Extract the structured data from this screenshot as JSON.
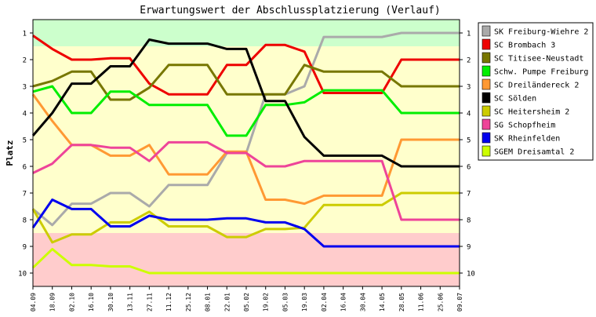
{
  "chart_data": {
    "type": "line",
    "title": "Erwartungswert der Abschlussplatzierung (Verlauf)",
    "xlabel": "",
    "ylabel": "Platz",
    "ylim": [
      0.5,
      10.5
    ],
    "y_ticks": [
      1,
      2,
      3,
      4,
      5,
      6,
      7,
      8,
      9,
      10
    ],
    "y_axis_inverted": true,
    "grid": false,
    "legend_position": "right",
    "zones": [
      {
        "from": 0.5,
        "to": 1.5,
        "color": "#ccffcc"
      },
      {
        "from": 1.5,
        "to": 8.5,
        "color": "#ffffcc"
      },
      {
        "from": 8.5,
        "to": 10.5,
        "color": "#ffcccc"
      }
    ],
    "categories": [
      "04.09",
      "18.09",
      "02.10",
      "16.10",
      "30.10",
      "13.11",
      "27.11",
      "11.12",
      "25.12",
      "08.01",
      "22.01",
      "05.02",
      "19.02",
      "05.03",
      "19.03",
      "02.04",
      "16.04",
      "30.04",
      "14.05",
      "28.05",
      "11.06",
      "25.06",
      "09.07"
    ],
    "series": [
      {
        "name": "SK Freiburg-Wiehre 2",
        "color": "#aaaaaa",
        "values": [
          7.6,
          8.2,
          7.4,
          7.4,
          7.0,
          7.0,
          7.5,
          6.7,
          6.7,
          6.7,
          5.5,
          5.5,
          3.3,
          3.3,
          3.0,
          1.15,
          1.15,
          1.15,
          1.15,
          1.0,
          1.0,
          1.0,
          1.0
        ]
      },
      {
        "name": "SC Brombach 3",
        "color": "#ee0000",
        "values": [
          1.1,
          1.6,
          2.0,
          2.0,
          1.95,
          1.95,
          2.9,
          3.3,
          3.3,
          3.3,
          2.2,
          2.2,
          1.45,
          1.45,
          1.7,
          3.25,
          3.25,
          3.25,
          3.25,
          2.0,
          2.0,
          2.0,
          2.0
        ]
      },
      {
        "name": "SC Titisee-Neustadt",
        "color": "#777700",
        "values": [
          3.0,
          2.8,
          2.45,
          2.45,
          3.5,
          3.5,
          3.05,
          2.2,
          2.2,
          2.2,
          3.3,
          3.3,
          3.3,
          3.3,
          2.2,
          2.45,
          2.45,
          2.45,
          2.45,
          3.0,
          3.0,
          3.0,
          3.0
        ]
      },
      {
        "name": "Schw. Pumpe Freiburg",
        "color": "#00ee00",
        "values": [
          3.2,
          3.0,
          4.0,
          4.0,
          3.2,
          3.2,
          3.7,
          3.7,
          3.7,
          3.7,
          4.85,
          4.85,
          3.7,
          3.7,
          3.6,
          3.15,
          3.15,
          3.15,
          3.15,
          4.0,
          4.0,
          4.0,
          4.0
        ]
      },
      {
        "name": "SC Dreiländereck 2",
        "color": "#ff9933",
        "values": [
          3.3,
          4.3,
          5.2,
          5.2,
          5.6,
          5.6,
          5.2,
          6.3,
          6.3,
          6.3,
          5.45,
          5.45,
          7.25,
          7.25,
          7.4,
          7.1,
          7.1,
          7.1,
          7.1,
          5.0,
          5.0,
          5.0,
          5.0
        ]
      },
      {
        "name": "SC Sölden",
        "color": "#000000",
        "values": [
          4.85,
          4.0,
          2.9,
          2.9,
          2.25,
          2.25,
          1.25,
          1.4,
          1.4,
          1.4,
          1.6,
          1.6,
          3.55,
          3.55,
          4.9,
          5.6,
          5.6,
          5.6,
          5.6,
          6.0,
          6.0,
          6.0,
          6.0
        ]
      },
      {
        "name": "SC Heitersheim 2",
        "color": "#cccc00",
        "values": [
          7.6,
          8.85,
          8.55,
          8.55,
          8.1,
          8.1,
          7.7,
          8.25,
          8.25,
          8.25,
          8.65,
          8.65,
          8.35,
          8.35,
          8.3,
          7.45,
          7.45,
          7.45,
          7.45,
          7.0,
          7.0,
          7.0,
          7.0
        ]
      },
      {
        "name": "SG Schopfheim",
        "color": "#ee4499",
        "values": [
          6.25,
          5.9,
          5.2,
          5.2,
          5.3,
          5.3,
          5.8,
          5.1,
          5.1,
          5.1,
          5.5,
          5.5,
          6.0,
          6.0,
          5.8,
          5.8,
          5.8,
          5.8,
          5.8,
          8.0,
          8.0,
          8.0,
          8.0
        ]
      },
      {
        "name": "SK Rheinfelden",
        "color": "#0000ee",
        "values": [
          8.3,
          7.25,
          7.6,
          7.6,
          8.25,
          8.25,
          7.85,
          8.0,
          8.0,
          8.0,
          7.95,
          7.95,
          8.1,
          8.1,
          8.35,
          9.0,
          9.0,
          9.0,
          9.0,
          9.0,
          9.0,
          9.0,
          9.0
        ]
      },
      {
        "name": "SGEM Dreisamtal 2",
        "color": "#ccff00",
        "values": [
          9.8,
          9.1,
          9.7,
          9.7,
          9.75,
          9.75,
          10.0,
          10.0,
          10.0,
          10.0,
          10.0,
          10.0,
          10.0,
          10.0,
          10.0,
          10.0,
          10.0,
          10.0,
          10.0,
          10.0,
          10.0,
          10.0,
          10.0
        ]
      }
    ]
  }
}
